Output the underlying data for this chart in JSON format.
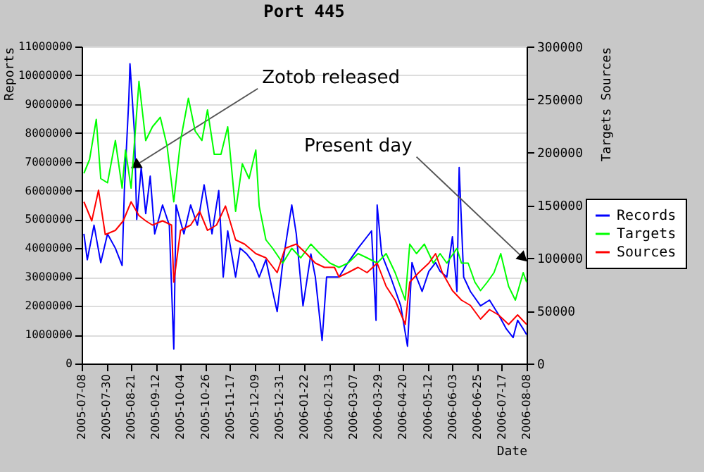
{
  "chart_data": {
    "type": "line",
    "title": "Port 445",
    "xlabel": "Date",
    "ylabel": "Reports",
    "y2label": "Targets  Sources",
    "xlim": [
      "2005-07-08",
      "2006-08-08"
    ],
    "xticks": [
      "2005-07-08",
      "2005-07-30",
      "2005-08-21",
      "2005-09-12",
      "2005-10-04",
      "2005-10-26",
      "2005-11-17",
      "2005-12-09",
      "2005-12-31",
      "2006-01-22",
      "2006-02-13",
      "2006-03-07",
      "2006-03-29",
      "2006-04-20",
      "2006-05-12",
      "2006-06-03",
      "2006-06-25",
      "2006-07-17",
      "2006-08-08"
    ],
    "ylim": [
      0,
      11000000
    ],
    "yticks": [
      0,
      1000000,
      2000000,
      3000000,
      4000000,
      5000000,
      6000000,
      7000000,
      8000000,
      9000000,
      10000000,
      11000000
    ],
    "y2lim": [
      0,
      300000
    ],
    "y2ticks": [
      0,
      50000,
      100000,
      150000,
      200000,
      250000,
      300000
    ],
    "grid": "y",
    "legend": "right",
    "annotations": [
      {
        "text": "Zotob released",
        "x": "2005-08-26",
        "y": 6900000
      },
      {
        "text": "Present day",
        "x": "2006-08-04",
        "y": 3700000
      }
    ],
    "series": [
      {
        "name": "Records",
        "color": "#0000ff",
        "axis": "y",
        "x": [
          "2005-07-10",
          "2005-07-13",
          "2005-07-19",
          "2005-07-25",
          "2005-07-31",
          "2005-08-07",
          "2005-08-13",
          "2005-08-15",
          "2005-08-19",
          "2005-08-20",
          "2005-08-24",
          "2005-08-26",
          "2005-08-30",
          "2005-09-03",
          "2005-09-07",
          "2005-09-11",
          "2005-09-18",
          "2005-09-24",
          "2005-09-28",
          "2005-09-30",
          "2005-10-07",
          "2005-10-13",
          "2005-10-19",
          "2005-10-25",
          "2005-11-01",
          "2005-11-07",
          "2005-11-11",
          "2005-11-15",
          "2005-11-22",
          "2005-11-26",
          "2005-12-02",
          "2005-12-08",
          "2005-12-13",
          "2005-12-19",
          "2005-12-25",
          "2005-12-29",
          "2006-01-03",
          "2006-01-11",
          "2006-01-15",
          "2006-01-21",
          "2006-01-28",
          "2006-02-01",
          "2006-02-07",
          "2006-02-11",
          "2006-02-22",
          "2006-03-02",
          "2006-03-11",
          "2006-03-19",
          "2006-03-23",
          "2006-03-27",
          "2006-03-28",
          "2006-04-01",
          "2006-04-09",
          "2006-04-18",
          "2006-04-24",
          "2006-04-28",
          "2006-05-02",
          "2006-05-07",
          "2006-05-13",
          "2006-05-19",
          "2006-05-23",
          "2006-05-29",
          "2006-06-03",
          "2006-06-07",
          "2006-06-09",
          "2006-06-13",
          "2006-06-19",
          "2006-06-28",
          "2006-07-06",
          "2006-07-14",
          "2006-07-21",
          "2006-07-27",
          "2006-07-31",
          "2006-08-05",
          "2006-08-08"
        ],
        "values": [
          4500000,
          3600000,
          4800000,
          3500000,
          4500000,
          4000000,
          3400000,
          6000000,
          9200000,
          10400000,
          8000000,
          5000000,
          6800000,
          5200000,
          6500000,
          4500000,
          5500000,
          4800000,
          500000,
          5500000,
          4500000,
          5500000,
          4800000,
          6200000,
          4500000,
          6000000,
          3000000,
          4600000,
          3000000,
          4000000,
          3800000,
          3500000,
          3000000,
          3600000,
          2500000,
          1800000,
          3500000,
          5500000,
          4500000,
          2000000,
          3800000,
          3000000,
          800000,
          3000000,
          3000000,
          3500000,
          4000000,
          4400000,
          4600000,
          1500000,
          5500000,
          3800000,
          3000000,
          2000000,
          600000,
          3500000,
          3000000,
          2500000,
          3200000,
          3500000,
          3200000,
          3000000,
          4400000,
          2500000,
          6800000,
          3000000,
          2500000,
          2000000,
          2200000,
          1700000,
          1200000,
          900000,
          1500000,
          1200000,
          1000000
        ]
      },
      {
        "name": "Targets",
        "color": "#00ff00",
        "axis": "y2",
        "x": [
          "2005-07-10",
          "2005-07-15",
          "2005-07-21",
          "2005-07-25",
          "2005-07-31",
          "2005-08-07",
          "2005-08-13",
          "2005-08-16",
          "2005-08-21",
          "2005-08-28",
          "2005-09-03",
          "2005-09-09",
          "2005-09-16",
          "2005-09-22",
          "2005-09-28",
          "2005-10-04",
          "2005-10-11",
          "2005-10-17",
          "2005-10-23",
          "2005-10-28",
          "2005-11-03",
          "2005-11-09",
          "2005-11-15",
          "2005-11-22",
          "2005-11-28",
          "2005-12-04",
          "2005-12-10",
          "2005-12-13",
          "2005-12-19",
          "2005-12-25",
          "2006-01-03",
          "2006-01-11",
          "2006-01-19",
          "2006-01-28",
          "2006-02-05",
          "2006-02-14",
          "2006-02-22",
          "2006-03-02",
          "2006-03-11",
          "2006-03-19",
          "2006-03-28",
          "2006-04-05",
          "2006-04-13",
          "2006-04-22",
          "2006-04-26",
          "2006-05-02",
          "2006-05-09",
          "2006-05-17",
          "2006-05-23",
          "2006-05-29",
          "2006-06-07",
          "2006-06-11",
          "2006-06-17",
          "2006-06-23",
          "2006-06-28",
          "2006-07-04",
          "2006-07-10",
          "2006-07-16",
          "2006-07-23",
          "2006-07-29",
          "2006-08-05",
          "2006-08-08"
        ],
        "values": [
          180000,
          193000,
          231000,
          175000,
          171000,
          211000,
          166000,
          202000,
          166000,
          267000,
          211000,
          224000,
          233000,
          206000,
          153000,
          211000,
          251000,
          220000,
          211000,
          240000,
          198000,
          198000,
          224000,
          144000,
          189000,
          175000,
          202000,
          149000,
          117000,
          109000,
          95000,
          109000,
          100000,
          113000,
          104000,
          95000,
          91000,
          95000,
          104000,
          100000,
          95000,
          104000,
          86000,
          60000,
          113000,
          104000,
          113000,
          95000,
          104000,
          95000,
          109000,
          95000,
          95000,
          77000,
          69000,
          77000,
          86000,
          104000,
          73000,
          60000,
          86000,
          77000
        ]
      },
      {
        "name": "Sources",
        "color": "#ff0000",
        "axis": "y2",
        "x": [
          "2005-07-10",
          "2005-07-17",
          "2005-07-23",
          "2005-07-29",
          "2005-08-07",
          "2005-08-14",
          "2005-08-21",
          "2005-08-28",
          "2005-09-03",
          "2005-09-09",
          "2005-09-18",
          "2005-09-26",
          "2005-09-28",
          "2005-10-04",
          "2005-10-13",
          "2005-10-21",
          "2005-10-28",
          "2005-11-05",
          "2005-11-13",
          "2005-11-22",
          "2005-11-30",
          "2005-12-10",
          "2005-12-19",
          "2005-12-29",
          "2006-01-05",
          "2006-01-15",
          "2006-01-24",
          "2006-02-01",
          "2006-02-09",
          "2006-02-18",
          "2006-02-22",
          "2006-03-02",
          "2006-03-11",
          "2006-03-19",
          "2006-03-28",
          "2006-04-05",
          "2006-04-13",
          "2006-04-22",
          "2006-04-26",
          "2006-05-04",
          "2006-05-13",
          "2006-05-19",
          "2006-05-25",
          "2006-06-03",
          "2006-06-11",
          "2006-06-19",
          "2006-06-28",
          "2006-07-06",
          "2006-07-14",
          "2006-07-23",
          "2006-07-31",
          "2006-08-08"
        ],
        "values": [
          153000,
          135000,
          164000,
          122000,
          126000,
          135000,
          153000,
          140000,
          135000,
          131000,
          135000,
          131000,
          77000,
          126000,
          131000,
          144000,
          126000,
          131000,
          149000,
          117000,
          113000,
          104000,
          100000,
          86000,
          109000,
          113000,
          104000,
          95000,
          91000,
          91000,
          82000,
          86000,
          91000,
          86000,
          95000,
          73000,
          60000,
          37000,
          77000,
          86000,
          95000,
          104000,
          86000,
          69000,
          60000,
          55000,
          42000,
          51000,
          46000,
          37000,
          46000,
          37000
        ]
      }
    ]
  }
}
